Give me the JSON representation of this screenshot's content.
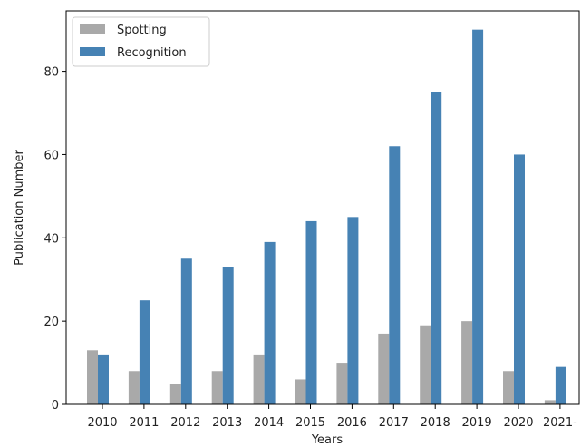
{
  "chart_data": {
    "type": "bar",
    "title": "",
    "xlabel": "Years",
    "ylabel": "Publication Number",
    "categories": [
      "2010",
      "2011",
      "2012",
      "2013",
      "2014",
      "2015",
      "2016",
      "2017",
      "2018",
      "2019",
      "2020",
      "2021-"
    ],
    "series": [
      {
        "name": "Spotting",
        "color": "#a9a9a9",
        "values": [
          13,
          8,
          5,
          8,
          12,
          6,
          10,
          17,
          19,
          20,
          8,
          1
        ]
      },
      {
        "name": "Recognition",
        "color": "#4682b4",
        "values": [
          12,
          25,
          35,
          33,
          39,
          44,
          45,
          62,
          75,
          90,
          60,
          9
        ]
      }
    ],
    "yticks": [
      0,
      20,
      40,
      60,
      80
    ],
    "ylim": [
      0,
      94.5
    ],
    "grid": false,
    "legend_position": "top-left"
  }
}
